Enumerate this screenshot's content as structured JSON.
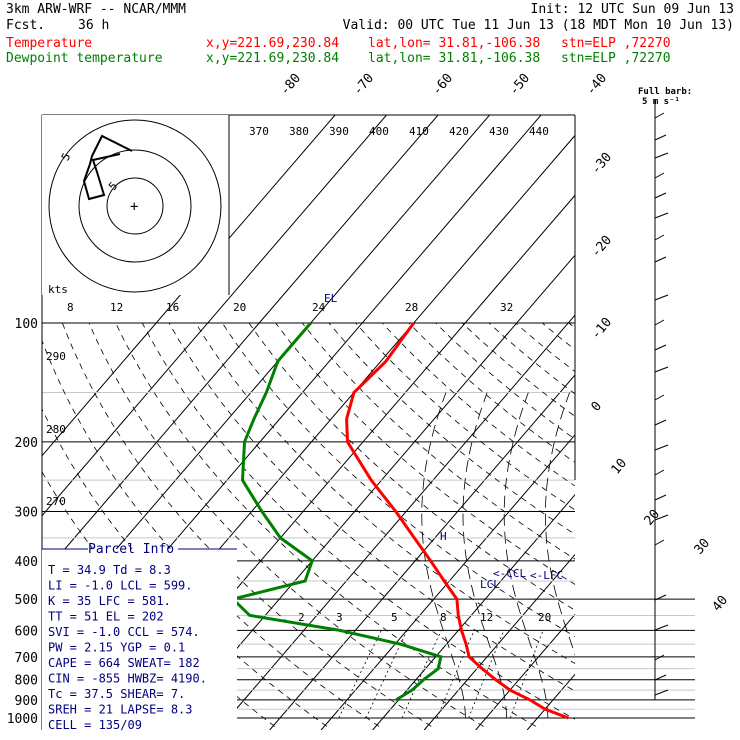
{
  "header": {
    "model": "3km ARW-WRF -- NCAR/MMM",
    "init": "Init: 12 UTC Sun 09 Jun 13",
    "fcst_label": "Fcst.",
    "fcst_value": "36 h",
    "valid": "Valid: 00 UTC Tue 11 Jun 13 (18 MDT Mon 10 Jun 13)",
    "legend": [
      {
        "name": "Temperature",
        "color": "#ff0000",
        "xy": "x,y=221.69,230.84",
        "latlon": "lat,lon= 31.81,-106.38",
        "stn": "stn=ELP ,72270"
      },
      {
        "name": "Dewpoint temperature",
        "color": "#008000",
        "xy": "x,y=221.69,230.84",
        "latlon": "lat,lon= 31.81,-106.38",
        "stn": "stn=ELP ,72270"
      }
    ],
    "barb_legend": [
      "Full barb:",
      "5 m s⁻¹"
    ]
  },
  "chart_data": {
    "type": "line",
    "pressure_levels": [
      100,
      200,
      300,
      400,
      500,
      600,
      700,
      800,
      900,
      1000
    ],
    "isotherm_labels": [
      "-80",
      "-70",
      "-60",
      "-50",
      "-40",
      "-30",
      "-20",
      "-10",
      "0",
      "10",
      "20",
      "30",
      "40"
    ],
    "theta_labels": [
      "370",
      "380",
      "390",
      "400",
      "410",
      "420",
      "430",
      "440"
    ],
    "dry_adiabat_labels": [
      "290",
      "280",
      "270"
    ],
    "mixing_ratio_labels_upper": [
      "8",
      "12",
      "16",
      "20",
      "24",
      "28",
      "32"
    ],
    "mixing_ratio_labels_lower": [
      "2",
      "3",
      "5",
      "8",
      "12",
      "20"
    ],
    "hodograph": {
      "unit_label": "kts",
      "ring_labels": [
        "5",
        "5"
      ]
    },
    "series": [
      {
        "name": "Temperature",
        "color": "#ff0000",
        "points": [
          [
            1000,
            36
          ],
          [
            950,
            30
          ],
          [
            900,
            25.5
          ],
          [
            850,
            20
          ],
          [
            800,
            15.5
          ],
          [
            750,
            11
          ],
          [
            700,
            6.5
          ],
          [
            650,
            3.8
          ],
          [
            600,
            0.6
          ],
          [
            550,
            -2.5
          ],
          [
            500,
            -5.5
          ],
          [
            450,
            -11
          ],
          [
            400,
            -17
          ],
          [
            350,
            -24
          ],
          [
            300,
            -32
          ],
          [
            250,
            -42
          ],
          [
            200,
            -53
          ],
          [
            175,
            -57
          ],
          [
            150,
            -60
          ],
          [
            125,
            -59
          ],
          [
            100,
            -60
          ]
        ]
      },
      {
        "name": "Dewpoint temperature",
        "color": "#008000",
        "points": [
          [
            900,
            -0.5
          ],
          [
            850,
            1
          ],
          [
            800,
            1.5
          ],
          [
            750,
            2.5
          ],
          [
            700,
            1
          ],
          [
            650,
            -9
          ],
          [
            600,
            -23
          ],
          [
            550,
            -43
          ],
          [
            500,
            -49
          ],
          [
            450,
            -38
          ],
          [
            400,
            -40
          ],
          [
            350,
            -50
          ],
          [
            300,
            -58
          ],
          [
            250,
            -67
          ],
          [
            200,
            -73
          ],
          [
            175,
            -75
          ],
          [
            150,
            -77
          ],
          [
            125,
            -80
          ],
          [
            100,
            -80
          ]
        ]
      }
    ],
    "annotations": [
      "EL",
      "LCL",
      "<-CCL",
      "<-LFC",
      "H"
    ],
    "wind_barb_label": "Full barb:"
  },
  "parcel": {
    "title": "Parcel Info",
    "rows": [
      "T   =  34.9  Td  =   8.3",
      "LI  =  -1.0  LCL =  599.",
      "K   =    35  LFC =  581.",
      "TT  =    51  EL  =   202",
      "SVI =  -1.0  CCL =  574.",
      "PW  =  2.15  YGP =   0.1",
      "CAPE =   664  SWEAT=   182",
      "CIN =  -855  HWBZ= 4190.",
      "Tc  =  37.5  SHEAR=    7.",
      "SREH =   21  LAPSE=   8.3",
      "CELL = 135/09"
    ]
  },
  "colors": {
    "temperature": "#ff0000",
    "dewpoint": "#008000",
    "parcel_text": "#000080",
    "axes": "#000000"
  }
}
